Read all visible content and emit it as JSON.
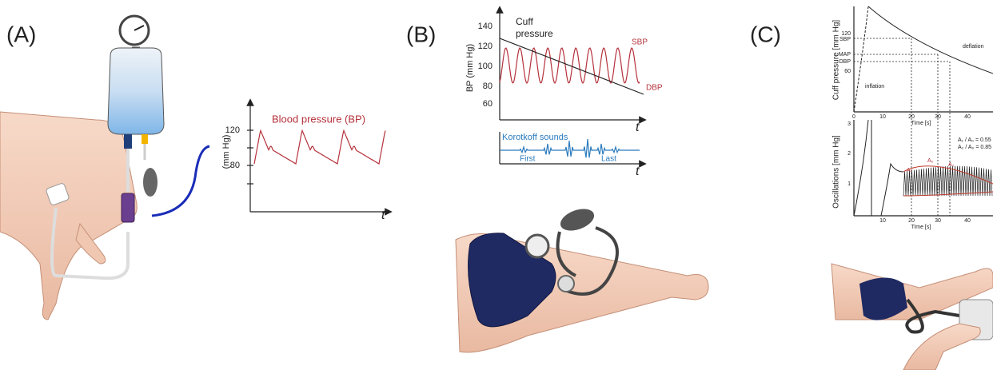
{
  "panels": [
    {
      "label": "(A)",
      "graph": {
        "title": "Blood pressure (BP)",
        "ylabel": "(mm Hg)",
        "yticks": [
          "120",
          "80"
        ],
        "xlabel": "t"
      }
    },
    {
      "label": "(B)",
      "graph": {
        "ylabel": "BP (mm Hg)",
        "yticks": [
          "140",
          "120",
          "100",
          "80",
          "60"
        ],
        "cuff": [
          "Cuff",
          "pressure"
        ],
        "sbp": "SBP",
        "dbp": "DBP",
        "xlabel": "t"
      },
      "sounds": {
        "title": "Korotkoff sounds",
        "first": "First",
        "last": "Last",
        "xlabel": "t"
      }
    },
    {
      "label": "(C)",
      "top": {
        "ylabel": "Cuff pressure [mm Hg]",
        "yticks": [
          "120",
          "SBP",
          "MAP",
          "DBP",
          "60"
        ],
        "xticks": [
          "0",
          "10",
          "20",
          "30",
          "40"
        ],
        "xlabel": "Time [s]",
        "deflation": "deflation",
        "inflation": "inflation"
      },
      "bottom": {
        "ylabel": "Oscillations [mm Hg]",
        "yticks": [
          "3",
          "2",
          "1"
        ],
        "xticks": [
          "10",
          "20",
          "30",
          "40"
        ],
        "xlabel": "Time [s]",
        "ratios": [
          "A₁ / A₀ = 0.55",
          "A₂ / A₀ = 0.85"
        ],
        "peaks": [
          "A₁",
          "A₀",
          "A₂"
        ]
      }
    }
  ]
}
